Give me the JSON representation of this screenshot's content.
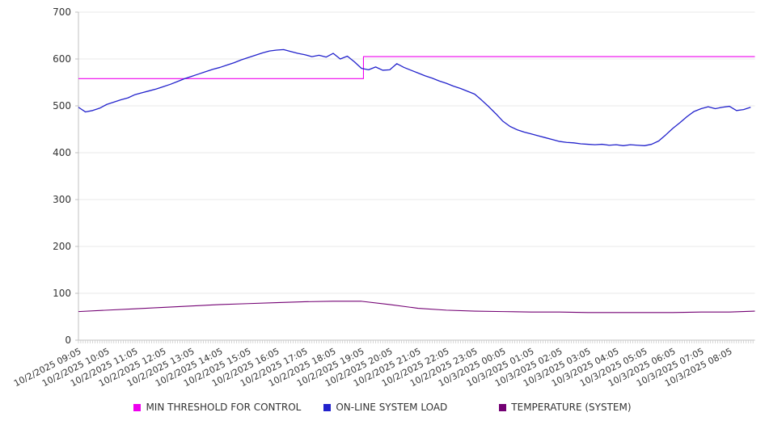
{
  "chart_data": {
    "type": "line",
    "title": "",
    "legend_position": "bottom",
    "grid": true,
    "y_axis": {
      "min": 0,
      "max": 700,
      "step": 100
    },
    "x_axis": {
      "minor_tick_interval_minutes": 5,
      "label_rotation_deg": -27,
      "labels": [
        "10/2/2025 09:05",
        "10/2/2025 10:05",
        "10/2/2025 11:05",
        "10/2/2025 12:05",
        "10/2/2025 13:05",
        "10/2/2025 14:05",
        "10/2/2025 15:05",
        "10/2/2025 16:05",
        "10/2/2025 17:05",
        "10/2/2025 18:05",
        "10/2/2025 19:05",
        "10/2/2025 20:05",
        "10/2/2025 21:05",
        "10/2/2025 22:05",
        "10/2/2025 23:05",
        "10/3/2025 00:05",
        "10/3/2025 01:05",
        "10/3/2025 02:05",
        "10/3/2025 03:05",
        "10/3/2025 04:05",
        "10/3/2025 05:05",
        "10/3/2025 06:05",
        "10/3/2025 07:05",
        "10/3/2025 08:05"
      ]
    },
    "series": [
      {
        "name": "MIN THRESHOLD FOR CONTROL",
        "color": "#EE00EE",
        "type": "step",
        "points": [
          {
            "time": "10/2/2025 09:05",
            "h": 0,
            "v": 558
          },
          {
            "time": "10/2/2025 19:09",
            "h": 10.07,
            "v": 558
          },
          {
            "time": "10/2/2025 19:09",
            "h": 10.07,
            "v": 605
          },
          {
            "time": "10/3/2025 08:59",
            "h": 23.9,
            "v": 605
          }
        ]
      },
      {
        "name": "ON-LINE SYSTEM LOAD",
        "color": "#2222CC",
        "type": "line",
        "start": "10/2/2025 09:05",
        "interval_minutes": 15,
        "values": [
          497,
          487,
          490,
          495,
          503,
          508,
          513,
          517,
          524,
          528,
          532,
          536,
          541,
          546,
          552,
          558,
          563,
          568,
          573,
          578,
          582,
          587,
          592,
          598,
          603,
          608,
          613,
          617,
          619,
          620,
          616,
          612,
          609,
          605,
          608,
          604,
          612,
          600,
          606,
          594,
          580,
          577,
          583,
          576,
          577,
          590,
          582,
          576,
          570,
          564,
          559,
          553,
          548,
          542,
          537,
          531,
          525,
          512,
          498,
          483,
          467,
          456,
          449,
          444,
          440,
          436,
          432,
          428,
          424,
          422,
          421,
          419,
          418,
          417,
          418,
          416,
          417,
          415,
          417,
          416,
          415,
          418,
          425,
          438,
          452,
          464,
          477,
          488,
          494,
          498,
          494,
          497,
          499,
          490,
          492,
          497
        ]
      },
      {
        "name": "TEMPERATURE (SYSTEM)",
        "color": "#730073",
        "type": "line",
        "start": "10/2/2025 09:05",
        "interval_minutes": 60,
        "values": [
          61,
          64,
          67,
          70,
          73,
          76,
          78,
          80,
          82,
          83,
          83,
          76,
          68,
          64,
          62,
          61,
          60,
          60,
          59,
          59,
          59,
          59,
          60,
          60,
          62
        ]
      }
    ],
    "colors": {
      "grid_line": "#e8e8e8",
      "axis_line": "#c0c0c0",
      "minor_tick": "#cccccc",
      "tick_label_text": "#333333",
      "legend_text": "#333333",
      "background": "#ffffff"
    }
  }
}
